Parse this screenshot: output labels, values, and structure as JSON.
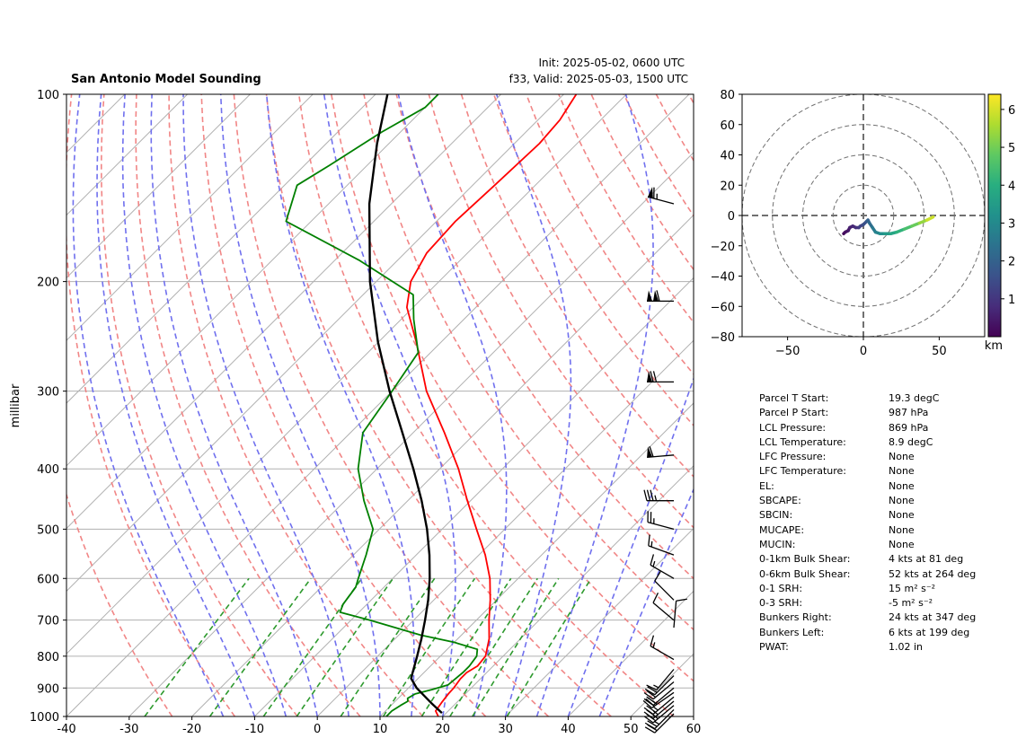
{
  "header": {
    "title": "San Antonio Model Sounding",
    "init": "Init: 2025-05-02, 0600 UTC",
    "valid": "f33, Valid: 2025-05-03, 1500 UTC"
  },
  "chart_data": [
    {
      "type": "skew-t",
      "title": "San Antonio Model Sounding",
      "ylabel": "millibar",
      "xlabel": "",
      "xlim": [
        -40,
        60
      ],
      "ylim": [
        1000,
        100
      ],
      "x_ticks": [
        -40,
        -30,
        -20,
        -10,
        0,
        10,
        20,
        30,
        40,
        50,
        60
      ],
      "y_ticks": [
        100,
        200,
        300,
        400,
        500,
        600,
        700,
        800,
        900,
        1000
      ],
      "series": [
        {
          "name": "Temperature",
          "color": "#ff0000",
          "points": [
            [
              1000,
              19.3
            ],
            [
              980,
              18.0
            ],
            [
              950,
              17.6
            ],
            [
              920,
              17.3
            ],
            [
              900,
              17.2
            ],
            [
              870,
              16.8
            ],
            [
              850,
              16.8
            ],
            [
              830,
              17.5
            ],
            [
              800,
              17.2
            ],
            [
              750,
              15.0
            ],
            [
              700,
              12.0
            ],
            [
              650,
              9.0
            ],
            [
              600,
              5.5
            ],
            [
              550,
              1.0
            ],
            [
              500,
              -4.5
            ],
            [
              450,
              -10.5
            ],
            [
              400,
              -17.0
            ],
            [
              350,
              -25.0
            ],
            [
              300,
              -34.5
            ],
            [
              250,
              -44.0
            ],
            [
              220,
              -51.0
            ],
            [
              200,
              -54.5
            ],
            [
              180,
              -56.5
            ],
            [
              160,
              -57.0
            ],
            [
              140,
              -56.5
            ],
            [
              120,
              -56.0
            ],
            [
              110,
              -56.5
            ],
            [
              100,
              -58.0
            ]
          ]
        },
        {
          "name": "Dewpoint",
          "color": "#008000",
          "points": [
            [
              1000,
              11.0
            ],
            [
              980,
              11.0
            ],
            [
              960,
              11.5
            ],
            [
              945,
              12.0
            ],
            [
              935,
              11.5
            ],
            [
              920,
              12.0
            ],
            [
              905,
              14.0
            ],
            [
              890,
              15.8
            ],
            [
              870,
              16.0
            ],
            [
              850,
              16.2
            ],
            [
              830,
              16.2
            ],
            [
              800,
              15.8
            ],
            [
              780,
              14.8
            ],
            [
              760,
              10.0
            ],
            [
              740,
              3.5
            ],
            [
              700,
              -7.0
            ],
            [
              680,
              -13.0
            ],
            [
              660,
              -13.8
            ],
            [
              620,
              -14.5
            ],
            [
              600,
              -15.5
            ],
            [
              550,
              -18.0
            ],
            [
              500,
              -21.0
            ],
            [
              450,
              -27.0
            ],
            [
              400,
              -33.0
            ],
            [
              350,
              -38.0
            ],
            [
              300,
              -40.0
            ],
            [
              260,
              -42.0
            ],
            [
              230,
              -48.0
            ],
            [
              210,
              -52.0
            ],
            [
              185,
              -66.0
            ],
            [
              160,
              -84.0
            ],
            [
              140,
              -88.0
            ],
            [
              130,
              -86.0
            ],
            [
              115,
              -83.0
            ],
            [
              105,
              -80.0
            ],
            [
              100,
              -80.0
            ]
          ]
        },
        {
          "name": "Parcel profile",
          "color": "#000000",
          "points": [
            [
              987,
              19.3
            ],
            [
              950,
              15.9
            ],
            [
              900,
              11.3
            ],
            [
              869,
              8.9
            ],
            [
              850,
              8.2
            ],
            [
              800,
              6.3
            ],
            [
              750,
              4.2
            ],
            [
              700,
              1.8
            ],
            [
              650,
              -0.9
            ],
            [
              600,
              -4.1
            ],
            [
              550,
              -7.9
            ],
            [
              500,
              -12.4
            ],
            [
              450,
              -17.8
            ],
            [
              400,
              -24.2
            ],
            [
              350,
              -31.7
            ],
            [
              300,
              -40.4
            ],
            [
              250,
              -50.1
            ],
            [
              200,
              -61.0
            ],
            [
              150,
              -73.5
            ],
            [
              120,
              -81.9
            ],
            [
              100,
              -88.1
            ]
          ]
        }
      ],
      "wind_barbs_kt": [
        {
          "p": 990,
          "dir": 225,
          "spd": 20
        },
        {
          "p": 975,
          "dir": 225,
          "spd": 25
        },
        {
          "p": 960,
          "dir": 230,
          "spd": 25
        },
        {
          "p": 945,
          "dir": 230,
          "spd": 25
        },
        {
          "p": 930,
          "dir": 230,
          "spd": 25
        },
        {
          "p": 915,
          "dir": 235,
          "spd": 25
        },
        {
          "p": 900,
          "dir": 230,
          "spd": 20
        },
        {
          "p": 880,
          "dir": 230,
          "spd": 20
        },
        {
          "p": 860,
          "dir": 225,
          "spd": 20
        },
        {
          "p": 840,
          "dir": 220,
          "spd": 15
        },
        {
          "p": 810,
          "dir": 300,
          "spd": 15
        },
        {
          "p": 720,
          "dir": 5,
          "spd": 10
        },
        {
          "p": 700,
          "dir": 310,
          "spd": 10
        },
        {
          "p": 650,
          "dir": 315,
          "spd": 10
        },
        {
          "p": 600,
          "dir": 300,
          "spd": 15
        },
        {
          "p": 550,
          "dir": 290,
          "spd": 15
        },
        {
          "p": 500,
          "dir": 285,
          "spd": 25
        },
        {
          "p": 450,
          "dir": 270,
          "spd": 35
        },
        {
          "p": 380,
          "dir": 265,
          "spd": 60
        },
        {
          "p": 290,
          "dir": 270,
          "spd": 70
        },
        {
          "p": 215,
          "dir": 270,
          "spd": 110
        },
        {
          "p": 150,
          "dir": 285,
          "spd": 65
        }
      ]
    },
    {
      "type": "hodograph",
      "xlim": [
        -80,
        80
      ],
      "ylim": [
        -80,
        80
      ],
      "x_ticks": [
        -50,
        0,
        50
      ],
      "y_ticks": [
        -80,
        -60,
        -40,
        -20,
        0,
        20,
        40,
        60,
        80
      ],
      "rings": [
        20,
        40,
        60,
        80
      ],
      "colorbar": {
        "label": "km",
        "min": 0,
        "max": 6.4,
        "ticks": [
          1,
          2,
          3,
          4,
          5,
          6
        ],
        "colormap": "viridis"
      },
      "points": [
        [
          -13,
          -12,
          0.05
        ],
        [
          -12,
          -11,
          0.2
        ],
        [
          -10,
          -10,
          0.35
        ],
        [
          -9,
          -8,
          0.5
        ],
        [
          -7,
          -7,
          0.65
        ],
        [
          -5,
          -8,
          0.8
        ],
        [
          -3,
          -8,
          1.0
        ],
        [
          -2,
          -7,
          1.2
        ],
        [
          0,
          -6,
          1.4
        ],
        [
          2,
          -4,
          1.7
        ],
        [
          3,
          -3,
          1.9
        ],
        [
          4,
          -5,
          2.1
        ],
        [
          6,
          -8,
          2.4
        ],
        [
          8,
          -11,
          2.7
        ],
        [
          11,
          -12,
          3.0
        ],
        [
          14,
          -12,
          3.3
        ],
        [
          18,
          -12,
          3.6
        ],
        [
          22,
          -11,
          3.9
        ],
        [
          27,
          -9,
          4.3
        ],
        [
          32,
          -7,
          4.7
        ],
        [
          37,
          -5,
          5.1
        ],
        [
          42,
          -3,
          5.6
        ],
        [
          46,
          -1,
          6.2
        ]
      ]
    }
  ],
  "parameters": [
    {
      "label": "Parcel T Start:",
      "value": "19.3 degC"
    },
    {
      "label": "Parcel P Start:",
      "value": "987 hPa"
    },
    {
      "label": "LCL Pressure:",
      "value": "869 hPa"
    },
    {
      "label": "LCL Temperature:",
      "value": "8.9 degC"
    },
    {
      "label": "LFC Pressure:",
      "value": "None"
    },
    {
      "label": "LFC Temperature:",
      "value": "None"
    },
    {
      "label": "EL:",
      "value": "None"
    },
    {
      "label": "SBCAPE:",
      "value": "None"
    },
    {
      "label": "SBCIN:",
      "value": "None"
    },
    {
      "label": "MUCAPE:",
      "value": "None"
    },
    {
      "label": "MUCIN:",
      "value": "None"
    },
    {
      "label": "0-1km Bulk Shear:",
      "value": "4 kts at 81 deg"
    },
    {
      "label": "0-6km Bulk Shear:",
      "value": "52 kts at 264 deg"
    },
    {
      "label": "0-1 SRH:",
      "value": "15 m² s⁻²"
    },
    {
      "label": "0-3 SRH:",
      "value": "-5 m² s⁻²"
    },
    {
      "label": "Bunkers Right:",
      "value": "24 kts at 347 deg"
    },
    {
      "label": "Bunkers Left:",
      "value": "6 kts at 199 deg"
    },
    {
      "label": "PWAT:",
      "value": "1.02 in"
    }
  ]
}
